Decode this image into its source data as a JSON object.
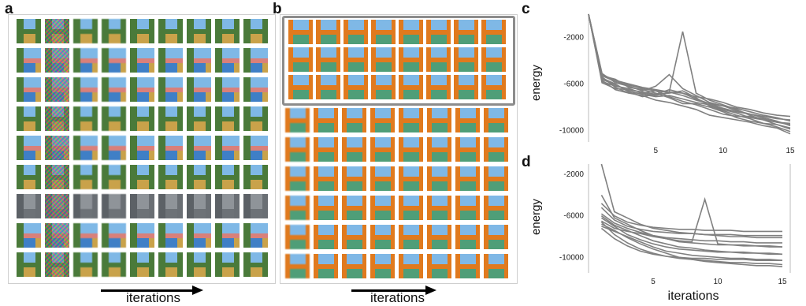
{
  "panel_labels": {
    "a": "a",
    "b": "b",
    "c": "c",
    "d": "d"
  },
  "arrow_labels": {
    "a": "iterations",
    "b": "iterations"
  },
  "colors": {
    "sky": "#7fb8e6",
    "grass": "#4a7a3a",
    "wall_orange": "#e07a1e",
    "ground_green": "#4f9e78",
    "road_yellow": "#c9a24a",
    "water_blue": "#3f7fc6",
    "pink_wall": "#d9807a",
    "stone_gray": "#8f9499",
    "line_gray": "#808080"
  },
  "chart_data": [
    {
      "panel": "c",
      "type": "line",
      "xlabel": "",
      "ylabel": "energy",
      "xlim": [
        0,
        15
      ],
      "ylim": [
        -11000,
        0
      ],
      "xticks": [
        5,
        10,
        15
      ],
      "yticks": [
        -2000,
        -6000,
        -10000
      ],
      "grid": false,
      "series": [
        {
          "x": [
            0,
            1,
            2,
            3,
            4,
            5,
            6,
            7,
            8,
            9,
            10,
            11,
            12,
            13,
            14,
            15
          ],
          "values": [
            0,
            -5300,
            -5800,
            -6100,
            -6400,
            -6600,
            -6700,
            -6800,
            -7100,
            -7300,
            -7600,
            -8000,
            -8200,
            -8500,
            -8700,
            -8800
          ]
        },
        {
          "x": [
            0,
            1,
            2,
            3,
            4,
            5,
            6,
            7,
            8,
            9,
            10,
            11,
            12,
            13,
            14,
            15
          ],
          "values": [
            0,
            -5600,
            -6100,
            -6600,
            -6900,
            -7100,
            -7000,
            -7300,
            -7600,
            -7800,
            -8200,
            -8500,
            -8900,
            -9100,
            -9300,
            -9400
          ]
        },
        {
          "x": [
            0,
            1,
            2,
            3,
            4,
            5,
            6,
            7,
            8,
            9,
            10,
            11,
            12,
            13,
            14,
            15
          ],
          "values": [
            0,
            -5900,
            -6400,
            -6500,
            -6700,
            -6900,
            -6500,
            -6800,
            -7300,
            -7700,
            -7900,
            -8300,
            -8600,
            -8900,
            -9200,
            -9600
          ]
        },
        {
          "x": [
            0,
            1,
            2,
            3,
            4,
            5,
            6,
            7,
            8,
            9,
            10,
            11,
            12,
            13,
            14,
            15
          ],
          "values": [
            0,
            -5400,
            -6300,
            -6800,
            -6800,
            -7000,
            -6700,
            -1500,
            -6800,
            -7400,
            -7800,
            -8200,
            -8700,
            -9100,
            -9500,
            -9900
          ]
        },
        {
          "x": [
            0,
            1,
            2,
            3,
            4,
            5,
            6,
            7,
            8,
            9,
            10,
            11,
            12,
            13,
            14,
            15
          ],
          "values": [
            0,
            -5500,
            -6000,
            -6700,
            -7100,
            -6900,
            -6800,
            -6600,
            -7200,
            -7900,
            -8300,
            -8700,
            -9000,
            -9400,
            -9700,
            -10100
          ]
        },
        {
          "x": [
            0,
            1,
            2,
            3,
            4,
            5,
            6,
            7,
            8,
            9,
            10,
            11,
            12,
            13,
            14,
            15
          ],
          "values": [
            0,
            -5100,
            -5900,
            -6200,
            -6600,
            -6200,
            -5200,
            -6400,
            -7000,
            -7600,
            -7900,
            -8100,
            -8400,
            -8700,
            -8900,
            -9200
          ]
        },
        {
          "x": [
            0,
            1,
            2,
            3,
            4,
            5,
            6,
            7,
            8,
            9,
            10,
            11,
            12,
            13,
            14,
            15
          ],
          "values": [
            0,
            -5700,
            -6500,
            -6800,
            -7000,
            -7400,
            -7600,
            -7900,
            -8200,
            -8700,
            -8900,
            -9100,
            -9300,
            -9600,
            -9800,
            -10300
          ]
        },
        {
          "x": [
            0,
            1,
            2,
            3,
            4,
            5,
            6,
            7,
            8,
            9,
            10,
            11,
            12,
            13,
            14,
            15
          ],
          "values": [
            0,
            -5200,
            -5700,
            -6000,
            -6300,
            -6500,
            -6700,
            -7000,
            -7400,
            -7700,
            -8100,
            -8400,
            -8600,
            -8800,
            -9000,
            -9100
          ]
        },
        {
          "x": [
            0,
            1,
            2,
            3,
            4,
            5,
            6,
            7,
            8,
            9,
            10,
            11,
            12,
            13,
            14,
            15
          ],
          "values": [
            0,
            -5800,
            -6200,
            -6400,
            -6800,
            -6600,
            -7100,
            -7500,
            -7800,
            -8200,
            -8600,
            -8800,
            -8800,
            -9000,
            -9300,
            -9500
          ]
        },
        {
          "x": [
            0,
            1,
            2,
            3,
            4,
            5,
            6,
            7,
            8,
            9,
            10,
            11,
            12,
            13,
            14,
            15
          ],
          "values": [
            0,
            -5300,
            -5600,
            -6300,
            -6500,
            -6800,
            -7200,
            -7700,
            -7700,
            -8000,
            -8400,
            -8900,
            -9200,
            -9400,
            -9500,
            -9800
          ]
        }
      ]
    },
    {
      "panel": "d",
      "type": "line",
      "xlabel": "iterations",
      "ylabel": "energy",
      "xlim": [
        0,
        15
      ],
      "ylim": [
        -11500,
        -1000
      ],
      "xticks": [
        5,
        10,
        15
      ],
      "yticks": [
        -2000,
        -6000,
        -10000
      ],
      "grid": false,
      "series": [
        {
          "x": [
            1,
            2,
            3,
            4,
            5,
            6,
            7,
            8,
            9,
            10,
            11,
            12,
            13,
            14,
            15
          ],
          "values": [
            -1000,
            -5600,
            -6200,
            -6800,
            -7200,
            -7400,
            -7600,
            -7700,
            -7800,
            -7900,
            -8000,
            -8000,
            -8100,
            -8100,
            -8100
          ]
        },
        {
          "x": [
            1,
            2,
            3,
            4,
            5,
            6,
            7,
            8,
            9,
            10,
            11,
            12,
            13,
            14,
            15
          ],
          "values": [
            -4000,
            -6200,
            -6800,
            -7400,
            -7900,
            -8200,
            -8500,
            -8600,
            -8700,
            -8800,
            -8800,
            -8900,
            -8900,
            -9000,
            -9000
          ]
        },
        {
          "x": [
            1,
            2,
            3,
            4,
            5,
            6,
            7,
            8,
            9,
            10,
            11,
            12,
            13,
            14,
            15
          ],
          "values": [
            -6000,
            -6900,
            -7400,
            -7900,
            -8400,
            -8700,
            -9000,
            -9100,
            -9300,
            -9400,
            -9500,
            -9500,
            -9600,
            -9600,
            -9700
          ]
        },
        {
          "x": [
            1,
            2,
            3,
            4,
            5,
            6,
            7,
            8,
            9,
            10,
            11,
            12,
            13,
            14,
            15
          ],
          "values": [
            -6500,
            -7200,
            -7500,
            -7700,
            -8000,
            -8200,
            -8400,
            -8500,
            -4400,
            -8700,
            -8800,
            -8800,
            -8900,
            -8900,
            -9000
          ]
        },
        {
          "x": [
            1,
            2,
            3,
            4,
            5,
            6,
            7,
            8,
            9,
            10,
            11,
            12,
            13,
            14,
            15
          ],
          "values": [
            -7000,
            -7500,
            -8000,
            -8500,
            -9000,
            -9400,
            -9600,
            -9800,
            -9900,
            -10000,
            -10100,
            -10100,
            -10200,
            -10200,
            -10300
          ]
        },
        {
          "x": [
            1,
            2,
            3,
            4,
            5,
            6,
            7,
            8,
            9,
            10,
            11,
            12,
            13,
            14,
            15
          ],
          "values": [
            -5200,
            -6400,
            -7000,
            -7300,
            -7500,
            -7600,
            -7700,
            -7700,
            -7800,
            -7800,
            -7800,
            -7900,
            -7900,
            -7900,
            -7900
          ]
        },
        {
          "x": [
            1,
            2,
            3,
            4,
            5,
            6,
            7,
            8,
            9,
            10,
            11,
            12,
            13,
            14,
            15
          ],
          "values": [
            -6800,
            -7400,
            -8100,
            -8700,
            -9200,
            -9600,
            -10000,
            -10200,
            -10400,
            -10500,
            -10600,
            -10700,
            -10800,
            -10800,
            -10900
          ]
        },
        {
          "x": [
            1,
            2,
            3,
            4,
            5,
            6,
            7,
            8,
            9,
            10,
            11,
            12,
            13,
            14,
            15
          ],
          "values": [
            -5800,
            -6700,
            -7200,
            -7600,
            -7900,
            -8100,
            -8200,
            -8300,
            -8400,
            -8400,
            -8500,
            -8500,
            -8600,
            -8600,
            -8600
          ]
        },
        {
          "x": [
            1,
            2,
            3,
            4,
            5,
            6,
            7,
            8,
            9,
            10,
            11,
            12,
            13,
            14,
            15
          ],
          "values": [
            -6200,
            -7000,
            -7800,
            -8300,
            -8700,
            -9000,
            -9200,
            -9300,
            -9400,
            -9500,
            -9500,
            -9600,
            -9600,
            -9700,
            -9700
          ]
        },
        {
          "x": [
            1,
            2,
            3,
            4,
            5,
            6,
            7,
            8,
            9,
            10,
            11,
            12,
            13,
            14,
            15
          ],
          "values": [
            -6600,
            -7800,
            -8600,
            -9200,
            -9600,
            -9900,
            -10100,
            -10200,
            -10300,
            -10400,
            -10500,
            -10500,
            -10600,
            -10600,
            -10700
          ]
        },
        {
          "x": [
            1,
            2,
            3,
            4,
            5,
            6,
            7,
            8,
            9,
            10,
            11,
            12,
            13,
            14,
            15
          ],
          "values": [
            -4800,
            -6000,
            -6600,
            -6900,
            -7100,
            -7200,
            -7300,
            -7300,
            -7400,
            -7400,
            -7400,
            -7500,
            -7500,
            -7500,
            -7500
          ]
        },
        {
          "x": [
            1,
            2,
            3,
            4,
            5,
            6,
            7,
            8,
            9,
            10,
            11,
            12,
            13,
            14,
            15
          ],
          "values": [
            -7200,
            -8200,
            -8900,
            -9400,
            -9700,
            -9900,
            -10000,
            -10100,
            -10100,
            -10200,
            -10200,
            -10200,
            -10300,
            -10300,
            -10300
          ]
        }
      ]
    }
  ]
}
